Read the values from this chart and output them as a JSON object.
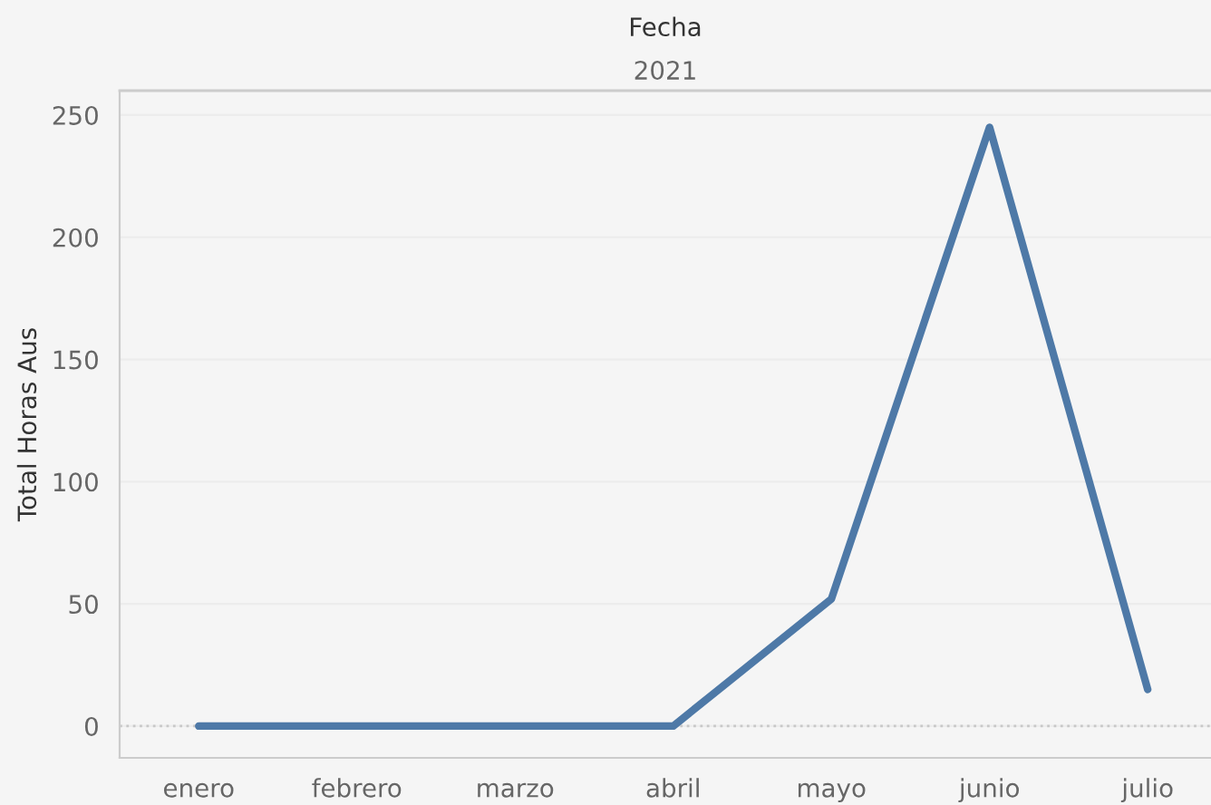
{
  "chart_data": {
    "type": "line",
    "title": "Fecha",
    "subtitle": "2021",
    "ylabel": "Total Horas Aus",
    "categories": [
      "enero",
      "febrero",
      "marzo",
      "abril",
      "mayo",
      "junio",
      "julio"
    ],
    "series": [
      {
        "color": "#4e79a7",
        "values": [
          0,
          0,
          0,
          0,
          52,
          245,
          15
        ]
      }
    ],
    "ylim": [
      -13,
      260
    ],
    "yticks": [
      0,
      50,
      100,
      150,
      200,
      250
    ],
    "grid": "y",
    "marker": "none",
    "line_style": "solid",
    "ref_lines": [
      {
        "axis": "y",
        "value": 0,
        "color": "#c8c8c8",
        "line_style": "dotted"
      }
    ]
  }
}
